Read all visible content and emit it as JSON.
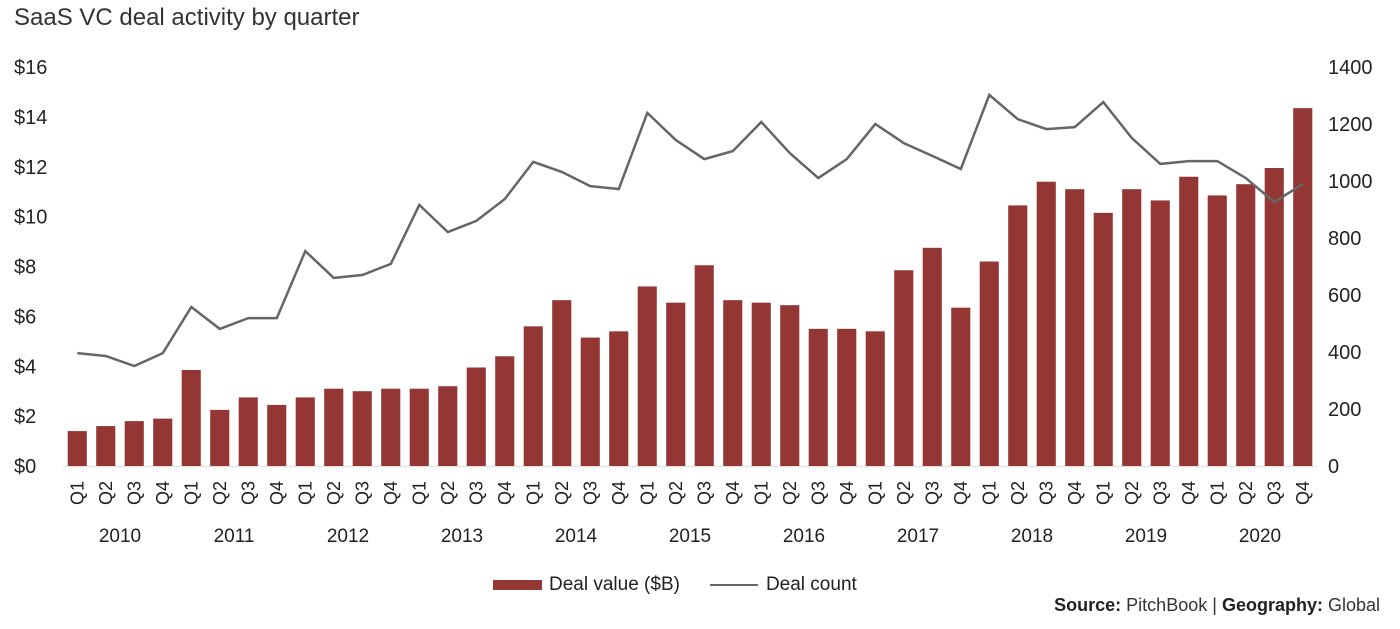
{
  "chart_data": {
    "type": "bar",
    "title": "SaaS VC deal activity by quarter",
    "xlabel": "",
    "ylabel": "Deal value ($B)",
    "y2label": "Deal count",
    "ylim": [
      0,
      16
    ],
    "y2lim": [
      0,
      1400
    ],
    "yticks": [
      "$0",
      "$2",
      "$4",
      "$6",
      "$8",
      "$10",
      "$12",
      "$14",
      "$16"
    ],
    "ytick_values": [
      0,
      2,
      4,
      6,
      8,
      10,
      12,
      14,
      16
    ],
    "y2ticks": [
      "0",
      "200",
      "400",
      "600",
      "800",
      "1000",
      "1200",
      "1400"
    ],
    "y2tick_values": [
      0,
      200,
      400,
      600,
      800,
      1000,
      1200,
      1400
    ],
    "grid": false,
    "legend_position": "bottom-center",
    "years": [
      "2010",
      "2011",
      "2012",
      "2013",
      "2014",
      "2015",
      "2016",
      "2017",
      "2018",
      "2019",
      "2020"
    ],
    "quarters": [
      "Q1",
      "Q2",
      "Q3",
      "Q4"
    ],
    "categories": [
      "Q1 2010",
      "Q2 2010",
      "Q3 2010",
      "Q4 2010",
      "Q1 2011",
      "Q2 2011",
      "Q3 2011",
      "Q4 2011",
      "Q1 2012",
      "Q2 2012",
      "Q3 2012",
      "Q4 2012",
      "Q1 2013",
      "Q2 2013",
      "Q3 2013",
      "Q4 2013",
      "Q1 2014",
      "Q2 2014",
      "Q3 2014",
      "Q4 2014",
      "Q1 2015",
      "Q2 2015",
      "Q3 2015",
      "Q4 2015",
      "Q1 2016",
      "Q2 2016",
      "Q3 2016",
      "Q4 2016",
      "Q1 2017",
      "Q2 2017",
      "Q3 2017",
      "Q4 2017",
      "Q1 2018",
      "Q2 2018",
      "Q3 2018",
      "Q4 2018",
      "Q1 2019",
      "Q2 2019",
      "Q3 2019",
      "Q4 2019",
      "Q1 2020",
      "Q2 2020",
      "Q3 2020",
      "Q4 2020"
    ],
    "series": [
      {
        "name": "Deal value ($B)",
        "type": "bar",
        "axis": "left",
        "color": "#943634",
        "values": [
          1.4,
          1.6,
          1.8,
          1.9,
          3.85,
          2.25,
          2.75,
          2.45,
          2.75,
          3.1,
          3.0,
          3.1,
          3.1,
          3.2,
          3.95,
          4.4,
          5.6,
          6.65,
          5.15,
          5.4,
          7.2,
          6.55,
          8.05,
          6.65,
          6.55,
          6.45,
          5.5,
          5.5,
          5.4,
          7.85,
          8.75,
          6.35,
          8.2,
          10.45,
          11.4,
          11.1,
          10.15,
          11.1,
          10.65,
          11.6,
          10.85,
          11.3,
          11.95,
          14.35
        ]
      },
      {
        "name": "Deal count",
        "type": "line",
        "axis": "right",
        "color": "#666666",
        "values": [
          396,
          386,
          351,
          396,
          558,
          481,
          519,
          519,
          754,
          660,
          670,
          709,
          916,
          821,
          860,
          937,
          1067,
          1032,
          982,
          972,
          1239,
          1144,
          1077,
          1105,
          1207,
          1098,
          1010,
          1077,
          1200,
          1133,
          1088,
          1042,
          1302,
          1217,
          1182,
          1189,
          1277,
          1151,
          1060,
          1070,
          1070,
          1010,
          926,
          989
        ]
      }
    ]
  },
  "legend": {
    "bar_label": "Deal value ($B)",
    "line_label": "Deal count"
  },
  "footer": {
    "source_label": "Source:",
    "source_value": "PitchBook",
    "separator": "|",
    "geography_label": "Geography:",
    "geography_value": "Global"
  }
}
